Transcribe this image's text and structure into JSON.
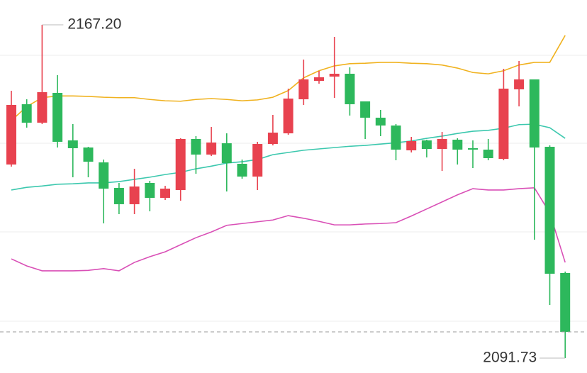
{
  "chart_data": {
    "type": "candlestick",
    "ylim": [
      2088.36,
      2172.82
    ],
    "up_color": "#e8424f",
    "down_color": "#2db85c",
    "ohlc": [
      [
        2135.57,
        2152.27,
        2135.09,
        2149.06
      ],
      [
        2149.22,
        2150.34,
        2143.92,
        2145.04
      ],
      [
        2145.04,
        2167.2,
        2144.72,
        2151.95
      ],
      [
        2151.79,
        2155.8,
        2139.42,
        2140.71
      ],
      [
        2141.03,
        2144.72,
        2132.68,
        2139.26
      ],
      [
        2139.42,
        2139.58,
        2132.68,
        2136.21
      ],
      [
        2136.05,
        2136.69,
        2122.24,
        2130.11
      ],
      [
        2130.27,
        2131.39,
        2124.33,
        2126.58
      ],
      [
        2126.58,
        2134.6,
        2124.33,
        2130.59
      ],
      [
        2131.39,
        2131.87,
        2124.97,
        2128.02
      ],
      [
        2128.02,
        2130.75,
        2127.54,
        2130.11
      ],
      [
        2129.79,
        2141.51,
        2127.38,
        2141.35
      ],
      [
        2141.35,
        2141.99,
        2133.48,
        2137.82
      ],
      [
        2137.82,
        2144.08,
        2137.49,
        2140.55
      ],
      [
        2140.38,
        2142.63,
        2129.47,
        2135.89
      ],
      [
        2135.73,
        2136.69,
        2132.36,
        2132.84
      ],
      [
        2132.84,
        2140.71,
        2129.79,
        2140.22
      ],
      [
        2140.22,
        2146.81,
        2139.9,
        2142.79
      ],
      [
        2142.63,
        2152.75,
        2142.31,
        2150.5
      ],
      [
        2150.34,
        2159.33,
        2149.06,
        2154.84
      ],
      [
        2154.51,
        2156.76,
        2153.87,
        2155.32
      ],
      [
        2155.48,
        2164.47,
        2150.66,
        2156.12
      ],
      [
        2156.12,
        2157.57,
        2146.65,
        2149.22
      ],
      [
        2149.86,
        2149.86,
        2141.35,
        2146.17
      ],
      [
        2146.17,
        2147.93,
        2141.99,
        2144.4
      ],
      [
        2144.4,
        2144.72,
        2136.53,
        2138.94
      ],
      [
        2138.78,
        2141.83,
        2138.3,
        2140.87
      ],
      [
        2141.03,
        2141.19,
        2137.17,
        2139.1
      ],
      [
        2139.1,
        2142.95,
        2134.12,
        2141.35
      ],
      [
        2141.19,
        2141.51,
        2135.57,
        2138.94
      ],
      [
        2139.26,
        2141.03,
        2134.76,
        2138.94
      ],
      [
        2138.94,
        2141.35,
        2136.53,
        2137.01
      ],
      [
        2136.85,
        2157.24,
        2136.53,
        2152.75
      ],
      [
        2152.59,
        2159.01,
        2148.73,
        2154.84
      ],
      [
        2154.84,
        2154.84,
        2118.55,
        2139.42
      ],
      [
        2139.58,
        2139.9,
        2103.77,
        2110.84
      ],
      [
        2111.0,
        2111.32,
        2091.73,
        2097.67
      ]
    ],
    "bands": [
      {
        "color": "#f0b21f",
        "values": [
          2145.5,
          2148.7,
          2150.7,
          2151.1,
          2151.1,
          2151.0,
          2150.8,
          2150.7,
          2150.7,
          2150.3,
          2150.0,
          2149.9,
          2150.3,
          2150.5,
          2150.3,
          2150.0,
          2150.2,
          2150.8,
          2152.3,
          2155.2,
          2156.8,
          2157.9,
          2158.4,
          2158.5,
          2158.7,
          2158.7,
          2158.5,
          2158.4,
          2158.1,
          2157.4,
          2156.4,
          2156.1,
          2156.8,
          2158.1,
          2158.7,
          2158.7,
          2164.8
        ]
      },
      {
        "color": "#3cc8ae",
        "values": [
          2129.8,
          2130.4,
          2130.7,
          2131.1,
          2131.2,
          2131.4,
          2131.4,
          2131.7,
          2132.2,
          2132.7,
          2133.3,
          2133.8,
          2134.6,
          2135.2,
          2135.9,
          2136.2,
          2136.7,
          2137.8,
          2138.3,
          2138.8,
          2139.1,
          2139.4,
          2139.7,
          2139.9,
          2140.2,
          2140.5,
          2140.9,
          2141.5,
          2142.0,
          2142.6,
          2143.1,
          2143.3,
          2143.8,
          2144.6,
          2144.7,
          2143.9,
          2141.5
        ]
      },
      {
        "color": "#d94fb6",
        "values": [
          2114.2,
          2112.6,
          2111.5,
          2111.5,
          2111.5,
          2111.6,
          2112.0,
          2111.5,
          2113.4,
          2114.7,
          2115.8,
          2117.4,
          2119.0,
          2120.3,
          2121.8,
          2122.2,
          2122.6,
          2123.0,
          2124.0,
          2123.4,
          2122.7,
          2121.9,
          2121.9,
          2122.1,
          2122.2,
          2122.4,
          2123.9,
          2125.5,
          2127.1,
          2128.7,
          2130.1,
          2129.8,
          2129.8,
          2130.1,
          2130.3,
          2124.6,
          2113.4
        ]
      }
    ],
    "annotations": [
      {
        "label": "2167.20",
        "value": 2167.2,
        "index": 2,
        "side": "right"
      },
      {
        "label": "2091.73",
        "value": 2091.73,
        "index": 36,
        "side": "left"
      }
    ]
  }
}
